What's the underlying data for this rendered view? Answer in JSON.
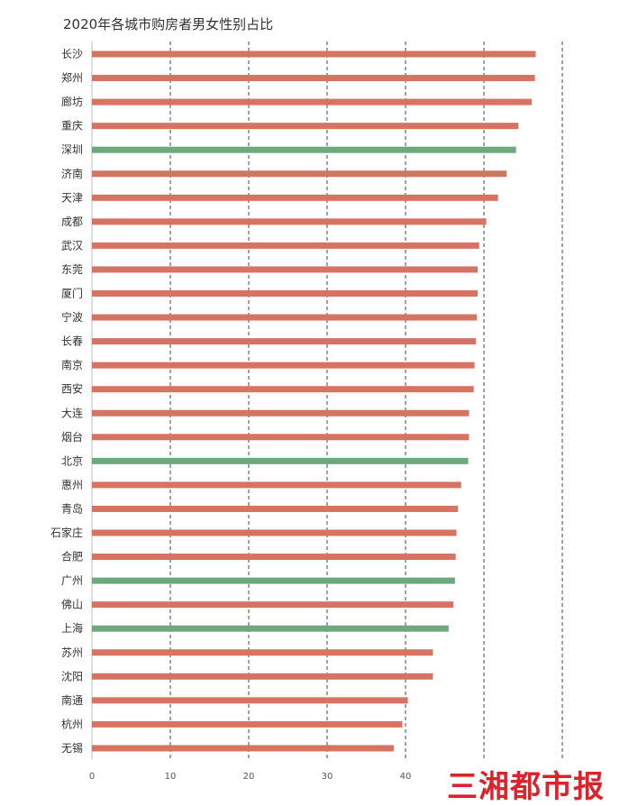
{
  "chart_data": {
    "type": "bar",
    "orientation": "horizontal",
    "title": "2020年各城市购房者男女性别占比",
    "categories": [
      "长沙",
      "郑州",
      "廊坊",
      "重庆",
      "深圳",
      "济南",
      "天津",
      "成都",
      "武汉",
      "东莞",
      "厦门",
      "宁波",
      "长春",
      "南京",
      "西安",
      "大连",
      "烟台",
      "北京",
      "惠州",
      "青岛",
      "石家庄",
      "合肥",
      "广州",
      "佛山",
      "上海",
      "苏州",
      "沈阳",
      "南通",
      "杭州",
      "无锡"
    ],
    "values": [
      56.6,
      56.5,
      56.1,
      54.4,
      54.1,
      52.9,
      51.8,
      50.3,
      49.4,
      49.2,
      49.2,
      49.1,
      49.0,
      48.8,
      48.7,
      48.1,
      48.1,
      48.0,
      47.1,
      46.7,
      46.5,
      46.4,
      46.3,
      46.1,
      45.5,
      43.5,
      43.5,
      40.3,
      39.6,
      38.5
    ],
    "highlight": [
      "深圳",
      "北京",
      "广州",
      "上海"
    ],
    "xlim": [
      0,
      60
    ],
    "xticks": [
      0,
      10,
      20,
      30,
      40,
      50,
      60
    ],
    "xtick_labels": [
      "0",
      "10",
      "20",
      "30",
      "40",
      "",
      ""
    ],
    "grid": "vertical dashed",
    "colors": {
      "default": "#d57462",
      "highlight": "#6fa87f"
    }
  },
  "watermark": {
    "text": "三湘都市报",
    "color": "#d9232d"
  }
}
